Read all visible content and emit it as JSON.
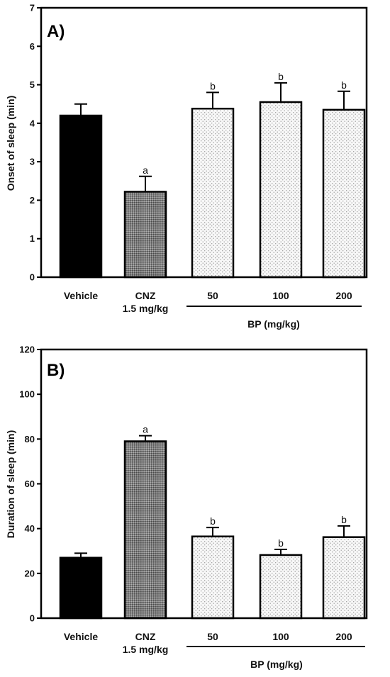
{
  "colors": {
    "vehicle_fill": "#000000",
    "cnz_fill": "#8a8a8a",
    "bp_fill": "#f4f4f4",
    "axis": "#000000"
  },
  "chart_data": [
    {
      "type": "bar",
      "panel_label": "A)",
      "title": "",
      "xlabel": "",
      "ylabel": "Onset of sleep (min)",
      "ylim": [
        0,
        7
      ],
      "yticks": [
        0,
        1,
        2,
        3,
        4,
        5,
        6,
        7
      ],
      "grid": false,
      "categories": [
        "Vehicle",
        "CNZ",
        "50",
        "100",
        "200"
      ],
      "category_sublabels": [
        "",
        "1.5 mg/kg",
        "",
        "",
        ""
      ],
      "values": [
        4.2,
        2.22,
        4.38,
        4.55,
        4.35
      ],
      "errors": [
        0.3,
        0.4,
        0.42,
        0.5,
        0.48
      ],
      "significance": [
        "",
        "a",
        "b",
        "b",
        "b"
      ],
      "patterns": [
        "solid",
        "dense",
        "dots",
        "dots",
        "dots"
      ],
      "group_label": "BP (mg/kg)"
    },
    {
      "type": "bar",
      "panel_label": "B)",
      "title": "",
      "xlabel": "",
      "ylabel": "Duration of sleep (min)",
      "ylim": [
        0,
        120
      ],
      "yticks": [
        0,
        20,
        40,
        60,
        80,
        100,
        120
      ],
      "grid": false,
      "categories": [
        "Vehicle",
        "CNZ",
        "50",
        "100",
        "200"
      ],
      "category_sublabels": [
        "",
        "1.5 mg/kg",
        "",
        "",
        ""
      ],
      "values": [
        27,
        79,
        36.5,
        28.2,
        36.2
      ],
      "errors": [
        2,
        2.5,
        4,
        2.5,
        5
      ],
      "significance": [
        "",
        "a",
        "b",
        "b",
        "b"
      ],
      "patterns": [
        "solid",
        "dense",
        "dots",
        "dots",
        "dots"
      ],
      "group_label": "BP (mg/kg)"
    }
  ]
}
